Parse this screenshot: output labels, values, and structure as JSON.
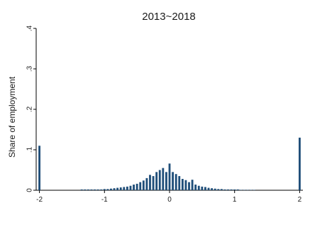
{
  "chart_data": {
    "type": "bar",
    "title": "2013~2018",
    "xlabel": "",
    "ylabel": "Share of employment",
    "xlim": [
      -2.05,
      2.05
    ],
    "ylim": [
      0,
      0.4
    ],
    "xticks": [
      -2,
      -1,
      0,
      1,
      2
    ],
    "xtick_labels": [
      "-2",
      "-1",
      "0",
      "1",
      "2"
    ],
    "yticks": [
      0,
      0.1,
      0.2,
      0.3,
      0.4
    ],
    "ytick_labels": [
      "0",
      ".1",
      ".2",
      ".3",
      ".4"
    ],
    "grid": false,
    "bar_color": "#1f4e79",
    "x": [
      -2.0,
      -1.35,
      -1.3,
      -1.25,
      -1.2,
      -1.15,
      -1.1,
      -1.05,
      -1.0,
      -0.95,
      -0.9,
      -0.85,
      -0.8,
      -0.75,
      -0.7,
      -0.65,
      -0.6,
      -0.55,
      -0.5,
      -0.45,
      -0.4,
      -0.35,
      -0.3,
      -0.25,
      -0.2,
      -0.15,
      -0.1,
      -0.05,
      0.0,
      0.05,
      0.1,
      0.15,
      0.2,
      0.25,
      0.3,
      0.35,
      0.4,
      0.45,
      0.5,
      0.55,
      0.6,
      0.65,
      0.7,
      0.75,
      0.8,
      0.85,
      0.9,
      0.95,
      1.0,
      1.05,
      1.1,
      1.15,
      1.2,
      1.25,
      1.3,
      2.0
    ],
    "values": [
      0.11,
      0.002,
      0.002,
      0.002,
      0.002,
      0.002,
      0.002,
      0.002,
      0.003,
      0.003,
      0.004,
      0.005,
      0.006,
      0.007,
      0.008,
      0.009,
      0.011,
      0.014,
      0.016,
      0.02,
      0.024,
      0.03,
      0.038,
      0.035,
      0.045,
      0.05,
      0.055,
      0.045,
      0.066,
      0.045,
      0.04,
      0.035,
      0.028,
      0.025,
      0.02,
      0.026,
      0.014,
      0.011,
      0.009,
      0.008,
      0.006,
      0.005,
      0.004,
      0.003,
      0.003,
      0.002,
      0.002,
      0.002,
      0.002,
      0.002,
      0.001,
      0.001,
      0.001,
      0.001,
      0.001,
      0.13
    ]
  }
}
